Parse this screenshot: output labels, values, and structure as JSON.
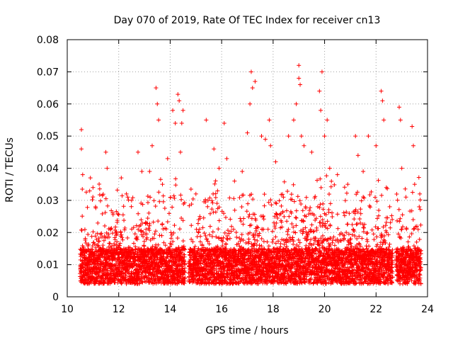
{
  "chart_data": {
    "type": "scatter",
    "title": "Day 070 of 2019, Rate Of TEC Index for receiver cn13",
    "xlabel": "GPS time / hours",
    "ylabel": "ROTI / TECUs",
    "xlim": [
      10,
      24
    ],
    "ylim": [
      0,
      0.08
    ],
    "x_ticks": [
      10,
      12,
      14,
      16,
      18,
      20,
      22,
      24
    ],
    "x_tick_labels": [
      "10",
      "12",
      "14",
      "16",
      "18",
      "20",
      "22",
      "24"
    ],
    "y_ticks": [
      0,
      0.01,
      0.02,
      0.03,
      0.04,
      0.05,
      0.06,
      0.07,
      0.08
    ],
    "y_tick_labels": [
      "0",
      "0.01",
      "0.02",
      "0.03",
      "0.04",
      "0.05",
      "0.06",
      "0.07",
      "0.08"
    ],
    "grid": true,
    "marker": "+",
    "marker_color": "#ff0000",
    "data_gaps_hours": [
      [
        14.58,
        14.72
      ],
      [
        22.65,
        22.78
      ]
    ],
    "series": [
      {
        "name": "ROTI",
        "points": [
          [
            10.55,
            0.052
          ],
          [
            10.55,
            0.046
          ],
          [
            10.6,
            0.038
          ],
          [
            10.9,
            0.037
          ],
          [
            11.0,
            0.034
          ],
          [
            11.1,
            0.028
          ],
          [
            11.5,
            0.045
          ],
          [
            11.55,
            0.04
          ],
          [
            12.1,
            0.037
          ],
          [
            12.3,
            0.032
          ],
          [
            12.5,
            0.03
          ],
          [
            12.75,
            0.045
          ],
          [
            12.9,
            0.039
          ],
          [
            13.2,
            0.039
          ],
          [
            13.3,
            0.047
          ],
          [
            13.45,
            0.065
          ],
          [
            13.5,
            0.06
          ],
          [
            13.55,
            0.055
          ],
          [
            13.7,
            0.035
          ],
          [
            13.9,
            0.043
          ],
          [
            14.1,
            0.058
          ],
          [
            14.2,
            0.054
          ],
          [
            14.3,
            0.063
          ],
          [
            14.35,
            0.061
          ],
          [
            14.45,
            0.054
          ],
          [
            14.5,
            0.058
          ],
          [
            14.4,
            0.045
          ],
          [
            15.0,
            0.032
          ],
          [
            15.4,
            0.055
          ],
          [
            15.7,
            0.046
          ],
          [
            15.9,
            0.04
          ],
          [
            16.1,
            0.054
          ],
          [
            16.2,
            0.043
          ],
          [
            16.5,
            0.036
          ],
          [
            16.8,
            0.039
          ],
          [
            17.0,
            0.051
          ],
          [
            17.15,
            0.07
          ],
          [
            17.2,
            0.065
          ],
          [
            17.1,
            0.06
          ],
          [
            17.3,
            0.067
          ],
          [
            17.55,
            0.05
          ],
          [
            17.7,
            0.049
          ],
          [
            17.85,
            0.055
          ],
          [
            17.9,
            0.047
          ],
          [
            18.1,
            0.042
          ],
          [
            18.4,
            0.031
          ],
          [
            18.6,
            0.05
          ],
          [
            18.8,
            0.055
          ],
          [
            18.9,
            0.06
          ],
          [
            19.0,
            0.072
          ],
          [
            19.0,
            0.068
          ],
          [
            19.05,
            0.066
          ],
          [
            19.1,
            0.05
          ],
          [
            19.2,
            0.047
          ],
          [
            19.5,
            0.045
          ],
          [
            19.8,
            0.064
          ],
          [
            19.9,
            0.07
          ],
          [
            19.85,
            0.058
          ],
          [
            20.0,
            0.05
          ],
          [
            20.1,
            0.055
          ],
          [
            20.2,
            0.04
          ],
          [
            20.5,
            0.038
          ],
          [
            20.9,
            0.035
          ],
          [
            21.2,
            0.05
          ],
          [
            21.3,
            0.044
          ],
          [
            21.5,
            0.039
          ],
          [
            21.7,
            0.05
          ],
          [
            22.0,
            0.047
          ],
          [
            22.2,
            0.064
          ],
          [
            22.25,
            0.061
          ],
          [
            22.3,
            0.055
          ],
          [
            22.4,
            0.034
          ],
          [
            22.9,
            0.059
          ],
          [
            22.95,
            0.055
          ],
          [
            23.0,
            0.04
          ],
          [
            23.4,
            0.053
          ],
          [
            23.45,
            0.047
          ],
          [
            23.5,
            0.035
          ],
          [
            23.7,
            0.032
          ]
        ]
      }
    ]
  }
}
